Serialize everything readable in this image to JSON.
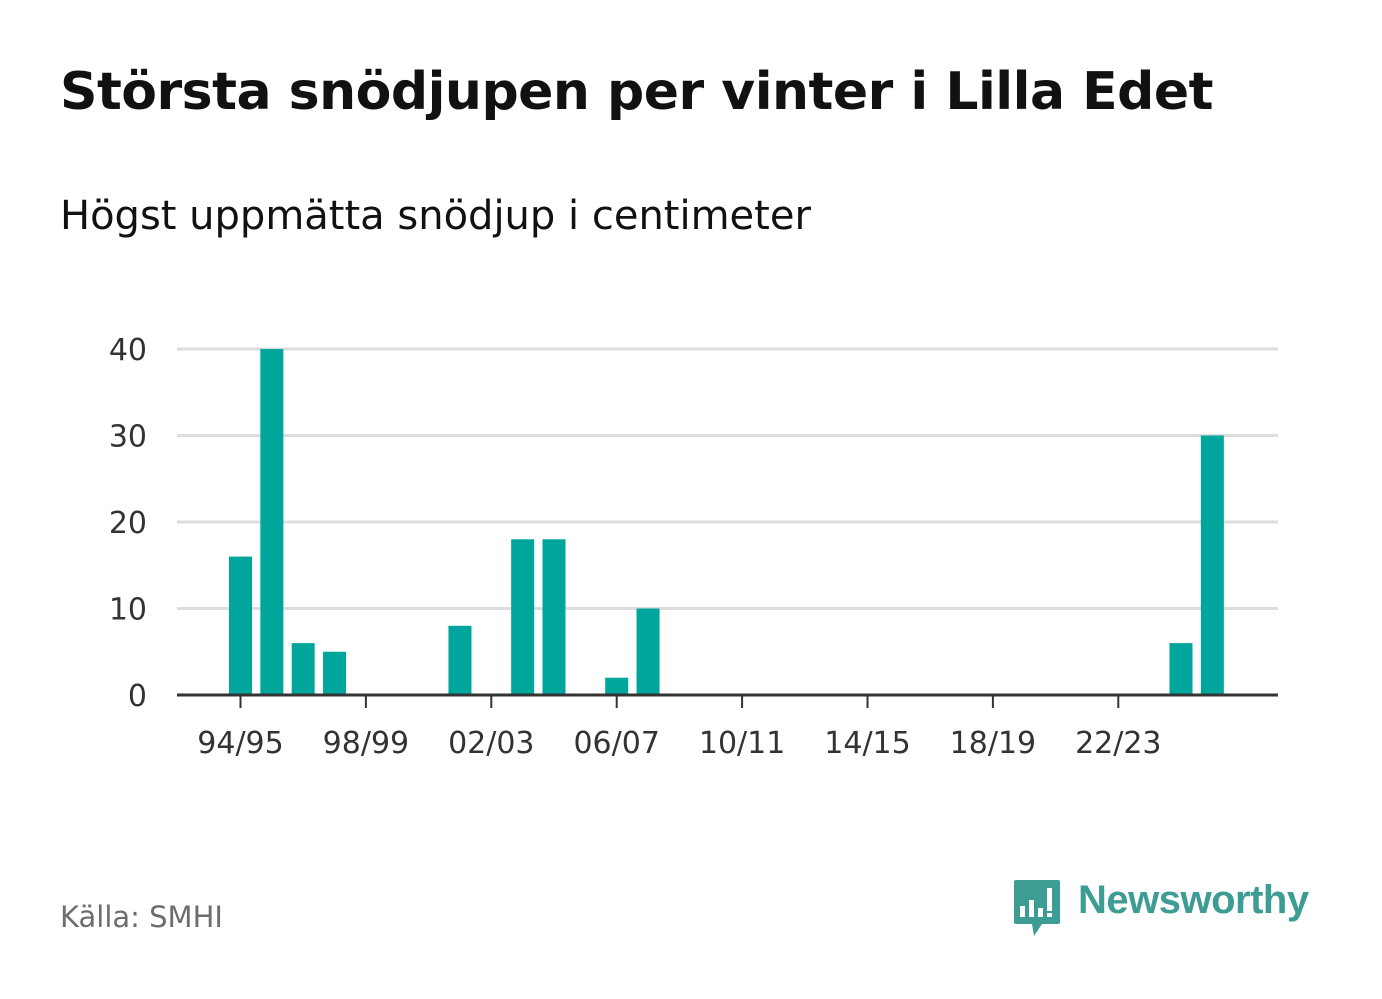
{
  "title": "Största snödjupen per vinter i Lilla Edet",
  "subtitle": "Högst uppmätta snödjup i centimeter",
  "source": "Källa: SMHI",
  "brand": {
    "name": "Newsworthy",
    "icon": "newsworthy-logo-icon",
    "color": "#3d9c93"
  },
  "chart_data": {
    "type": "bar",
    "ylim": [
      0,
      40
    ],
    "yticks": [
      0,
      10,
      20,
      30,
      40
    ],
    "grid": true,
    "bar_color": "#00a59b",
    "categories": [
      "94/95",
      "95/96",
      "96/97",
      "97/98",
      "98/99",
      "99/00",
      "00/01",
      "01/02",
      "02/03",
      "03/04",
      "04/05",
      "05/06",
      "06/07",
      "07/08",
      "08/09",
      "09/10",
      "10/11",
      "11/12",
      "12/13",
      "13/14",
      "14/15",
      "15/16",
      "16/17",
      "17/18",
      "18/19",
      "19/20",
      "20/21",
      "21/22",
      "22/23",
      "23/24",
      "24/25",
      "25/26"
    ],
    "values": [
      16,
      40,
      6,
      5,
      0,
      0,
      0,
      8,
      0,
      18,
      18,
      0,
      2,
      10,
      0,
      0,
      0,
      0,
      0,
      0,
      0,
      0,
      0,
      0,
      0,
      0,
      0,
      0,
      0,
      0,
      6,
      30
    ],
    "xtick_labels": [
      {
        "index": 0,
        "label": "94/95"
      },
      {
        "index": 4,
        "label": "98/99"
      },
      {
        "index": 8,
        "label": "02/03"
      },
      {
        "index": 12,
        "label": "06/07"
      },
      {
        "index": 16,
        "label": "10/11"
      },
      {
        "index": 20,
        "label": "14/15"
      },
      {
        "index": 24,
        "label": "18/19"
      },
      {
        "index": 28,
        "label": "22/23"
      }
    ]
  }
}
